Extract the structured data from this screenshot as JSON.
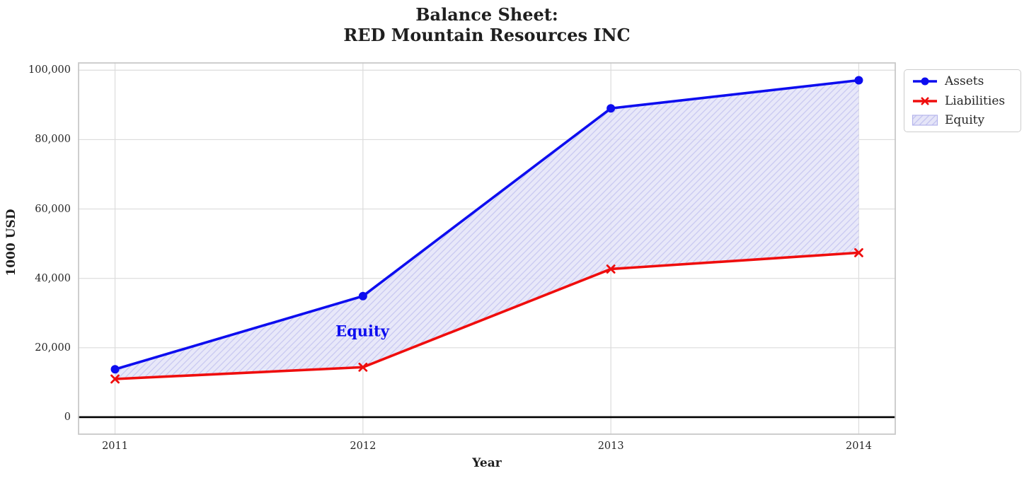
{
  "title": {
    "line1": "Balance Sheet:",
    "line2": "RED Mountain Resources INC"
  },
  "axes": {
    "xlabel": "Year",
    "ylabel": "1000 USD"
  },
  "chart_data": {
    "type": "line",
    "title": "Balance Sheet: RED Mountain Resources INC",
    "x": [
      2011,
      2012,
      2013,
      2014
    ],
    "x_tick_labels": [
      "2011",
      "2012",
      "2013",
      "2014"
    ],
    "xlim": [
      2010.85,
      2014.15
    ],
    "y_ticks": [
      0,
      20000,
      40000,
      60000,
      80000,
      100000
    ],
    "y_tick_labels": [
      "0",
      "20,000",
      "40,000",
      "60,000",
      "80,000",
      "100,000"
    ],
    "ylim": [
      -5100,
      102300
    ],
    "grid": true,
    "zero_line": true,
    "legend_position": "outside-top-right",
    "series": [
      {
        "name": "Assets",
        "marker": "circle",
        "color": "#0d0def",
        "values": [
          13800,
          34900,
          89000,
          97100
        ]
      },
      {
        "name": "Liabilities",
        "marker": "x",
        "color": "#ef0d0d",
        "values": [
          11000,
          14400,
          42700,
          47400
        ]
      }
    ],
    "fill_between": {
      "name": "Equity",
      "upper": "Assets",
      "lower": "Liabilities",
      "fill_color": "#e5e5f8",
      "hatch_color": "#c3c3f0",
      "edge_color": "#b5b5ec",
      "annotation": {
        "text": "Equity",
        "x": 2012,
        "y": 25000,
        "color": "#0d0def"
      }
    },
    "legend": [
      "Assets",
      "Liabilities",
      "Equity"
    ],
    "style": {
      "grid_color": "#dcdcdc",
      "spine_color": "#c9c9c9",
      "zero_line_color": "#000000",
      "text_color": "#262626"
    }
  }
}
